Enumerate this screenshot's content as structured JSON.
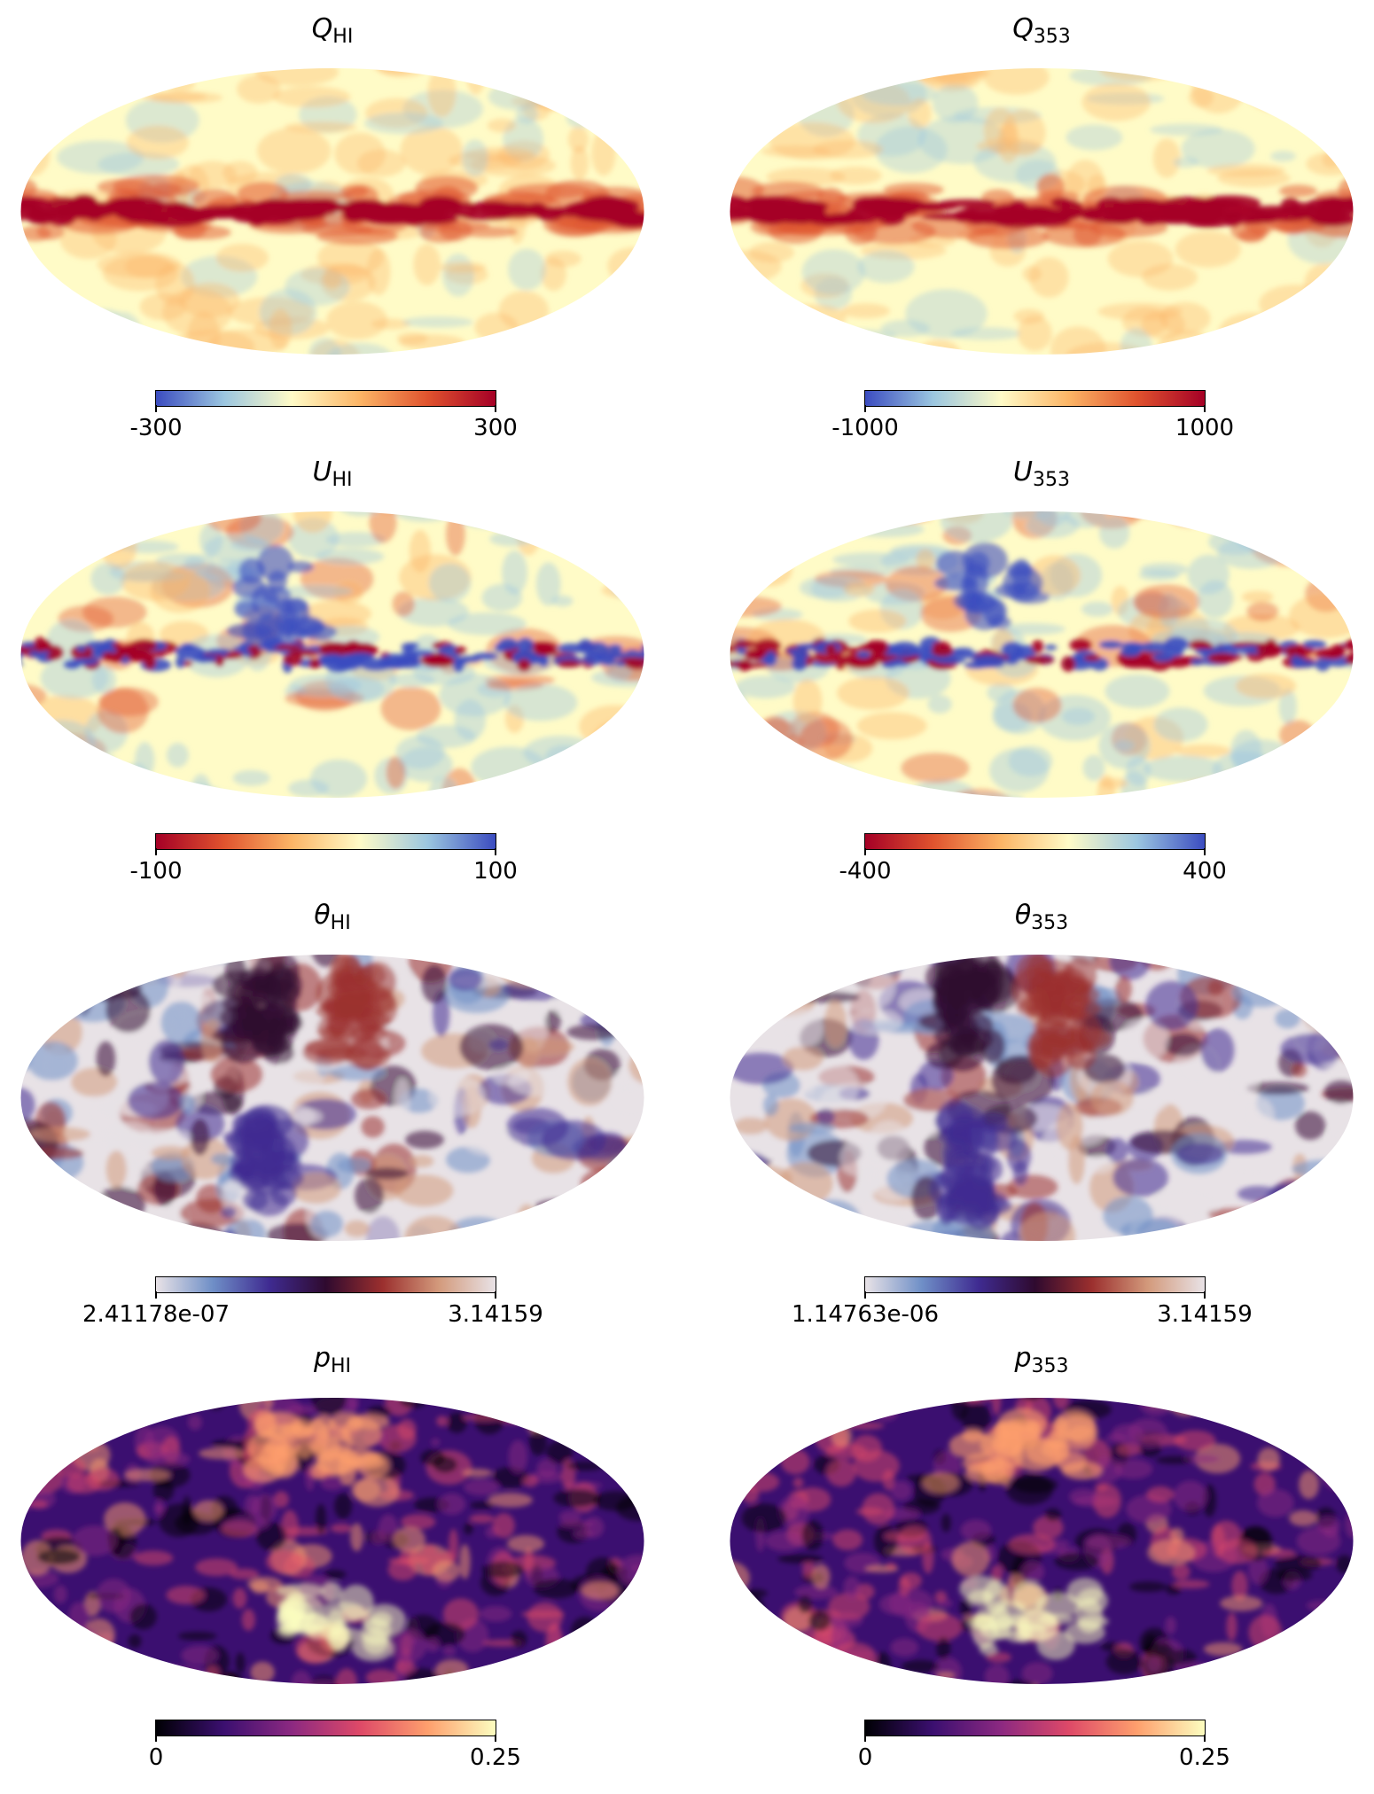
{
  "panels": [
    {
      "sym": "Q",
      "sub": "HI",
      "min": "-300",
      "max": "300",
      "cmap": [
        "#3b4cc0",
        "#9bc6e0",
        "#fffbc7",
        "#fcb566",
        "#e0532e",
        "#a50026"
      ],
      "pattern": "q"
    },
    {
      "sym": "Q",
      "sub": "353",
      "min": "-1000",
      "max": "1000",
      "cmap": [
        "#3b4cc0",
        "#9bc6e0",
        "#fffbc7",
        "#fcb566",
        "#e0532e",
        "#a50026"
      ],
      "pattern": "q"
    },
    {
      "sym": "U",
      "sub": "HI",
      "min": "-100",
      "max": "100",
      "cmap": [
        "#a50026",
        "#e0532e",
        "#fcb566",
        "#fffbc7",
        "#9bc6e0",
        "#3b4cc0"
      ],
      "pattern": "u"
    },
    {
      "sym": "U",
      "sub": "353",
      "min": "-400",
      "max": "400",
      "cmap": [
        "#a50026",
        "#e0532e",
        "#fcb566",
        "#fffbc7",
        "#9bc6e0",
        "#3b4cc0"
      ],
      "pattern": "u"
    },
    {
      "sym": "θ",
      "sub": "HI",
      "min": "2.41178e-07",
      "max": "3.14159",
      "cmap": [
        "#e8e2e6",
        "#6f8fc7",
        "#3f2b91",
        "#2f0a2f",
        "#9b2f2e",
        "#d39a7c",
        "#e8e2e6"
      ],
      "pattern": "t"
    },
    {
      "sym": "θ",
      "sub": "353",
      "min": "1.14763e-06",
      "max": "3.14159",
      "cmap": [
        "#e8e2e6",
        "#6f8fc7",
        "#3f2b91",
        "#2f0a2f",
        "#9b2f2e",
        "#d39a7c",
        "#e8e2e6"
      ],
      "pattern": "t"
    },
    {
      "sym": "p",
      "sub": "HI",
      "min": "0",
      "max": "0.25",
      "cmap": [
        "#000004",
        "#3b0f70",
        "#8c2981",
        "#de4968",
        "#fe9f6d",
        "#fcfdbf"
      ],
      "pattern": "p"
    },
    {
      "sym": "p",
      "sub": "353",
      "min": "0",
      "max": "0.25",
      "cmap": [
        "#000004",
        "#3b0f70",
        "#8c2981",
        "#de4968",
        "#fe9f6d",
        "#fcfdbf"
      ],
      "pattern": "p"
    }
  ]
}
